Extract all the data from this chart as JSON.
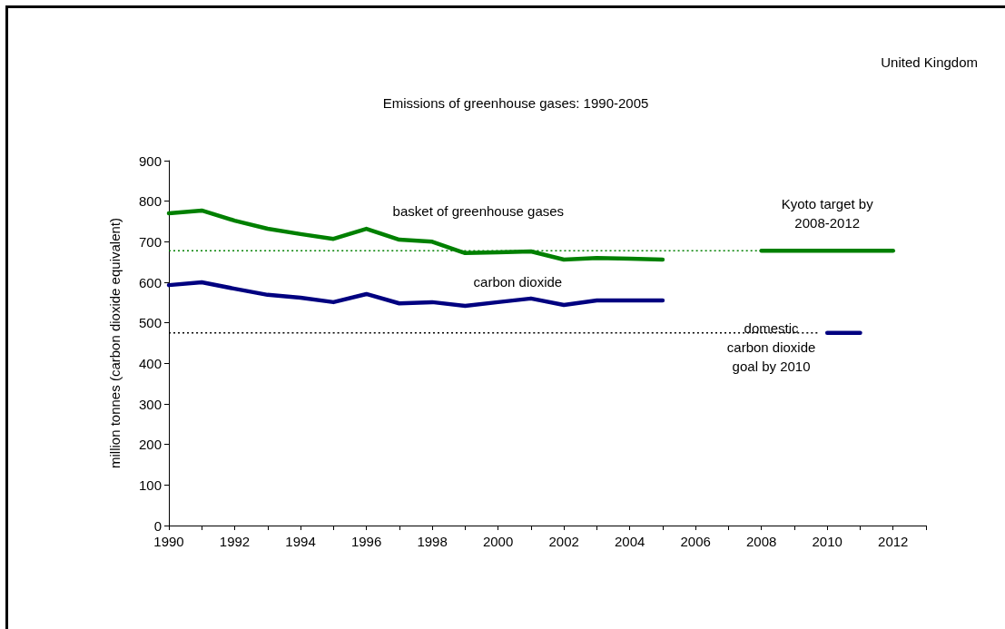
{
  "chart_data": {
    "type": "line",
    "title": "Emissions of greenhouse gases: 1990-2005",
    "subtitle": "United Kingdom",
    "ylabel": "million tonnes (carbon dioxide equivalent)",
    "xlim": [
      1990,
      2013
    ],
    "xticks": [
      1990,
      {
        "value": 1991,
        "label": null
      },
      1992,
      {
        "value": 1993,
        "label": null
      },
      1994,
      {
        "value": 1995,
        "label": null
      },
      1996,
      {
        "value": 1997,
        "label": null
      },
      1998,
      {
        "value": 1999,
        "label": null
      },
      2000,
      {
        "value": 2001,
        "label": null
      },
      2002,
      {
        "value": 2003,
        "label": null
      },
      2004,
      {
        "value": 2005,
        "label": null
      },
      2006,
      {
        "value": 2007,
        "label": null
      },
      2008,
      {
        "value": 2009,
        "label": null
      },
      2010,
      {
        "value": 2011,
        "label": null
      },
      2012,
      {
        "value": 2013,
        "label": null
      }
    ],
    "ylim": [
      0,
      900
    ],
    "yticks": [
      0,
      100,
      200,
      300,
      400,
      500,
      600,
      700,
      800,
      900
    ],
    "x": [
      1990,
      1991,
      1992,
      1993,
      1994,
      1995,
      1996,
      1997,
      1998,
      1999,
      2000,
      2001,
      2002,
      2003,
      2004,
      2005
    ],
    "series": [
      {
        "name": "basket of greenhouse gases",
        "color": "#008000",
        "values": [
          770,
          777,
          752,
          732,
          719,
          707,
          732,
          705,
          700,
          672,
          674,
          676,
          656,
          660,
          658,
          656
        ]
      },
      {
        "name": "carbon dioxide",
        "color": "#000080",
        "values": [
          593,
          600,
          584,
          569,
          562,
          551,
          571,
          548,
          551,
          542,
          551,
          560,
          544,
          555,
          555,
          555
        ]
      },
      {
        "color": "#008000",
        "x": [
          2008,
          2012
        ],
        "values": [
          678,
          678
        ]
      },
      {
        "color": "#000080",
        "x": [
          2010,
          2011
        ],
        "values": [
          475,
          475
        ]
      },
      {
        "color": "#008000",
        "line_style": "dotted",
        "x": [
          1990,
          2008
        ],
        "values": [
          678,
          678
        ]
      },
      {
        "color": "#000000",
        "line_style": "dotted",
        "x": [
          1990,
          2009.7
        ],
        "values": [
          475,
          475
        ]
      }
    ],
    "annotations": [
      "Kyoto target by\n2008-2012",
      "domestic\ncarbon dioxide\ngoal by 2010"
    ],
    "grid": false,
    "legend": false,
    "marker": "none",
    "line_style": "solid"
  }
}
